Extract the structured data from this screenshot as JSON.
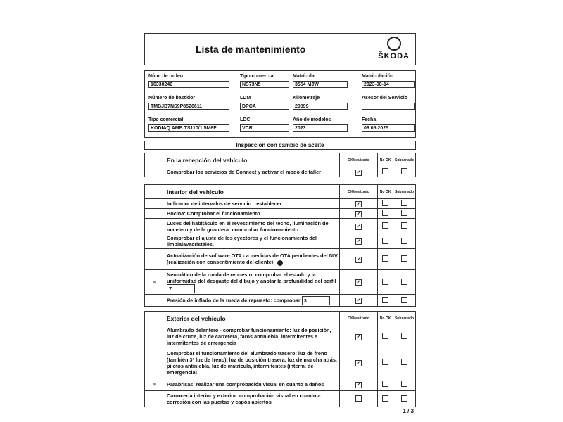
{
  "header": {
    "title": "Lista de mantenimiento",
    "logo": "ŠKODA"
  },
  "info": [
    {
      "label": "Núm. de orden",
      "value": "16330240"
    },
    {
      "label": "Tipo comercial",
      "value": "NS73N5"
    },
    {
      "label": "Matrícula",
      "value": "3554 MJW"
    },
    {
      "label": "Matriculación",
      "value": "2023-08-14"
    },
    {
      "label": "Número de bastidor",
      "value": "TMBJB7NS9P8526611"
    },
    {
      "label": "LDM",
      "value": "DPCA"
    },
    {
      "label": "Kilometraje",
      "value": "29099"
    },
    {
      "label": "Asesor del Servicio",
      "value": ""
    },
    {
      "label": "Tipo comercial",
      "value": "KODIAQ AMB TS110/1.5M6F"
    },
    {
      "label": "LDC",
      "value": "VCR"
    },
    {
      "label": "Año de modelos",
      "value": "2023"
    },
    {
      "label": "Fecha",
      "value": "06.05.2025"
    }
  ],
  "section_title": "Inspección con cambio de aceite",
  "columns": {
    "ok": "OK/realizado",
    "nok": "No OK",
    "sub": "Subsanado"
  },
  "tables": [
    {
      "title": "En la recepción del vehículo",
      "rows": [
        {
          "text": "Comprobar los servicios de Connect y activar el modo de taller",
          "ok": true,
          "nok": false,
          "sub": false
        }
      ]
    },
    {
      "title": "Interior del vehículo",
      "rows": [
        {
          "text": "Indicador de intervalos de servicio: restablecer",
          "ok": true,
          "nok": false,
          "sub": false
        },
        {
          "text": "Bocina: Comprobar el funcionamiento",
          "ok": true,
          "nok": false,
          "sub": false
        },
        {
          "text": "Luces del habitáculo en el revestimiento del techo, iluminación del maletero y de la guantera: comprobar funcionamiento",
          "ok": true,
          "nok": false,
          "sub": false
        },
        {
          "text": "Comprobar el ajuste de los eyectores y el funcionamiento del limpialavacristales.",
          "ok": true,
          "nok": false,
          "sub": false
        },
        {
          "text": "Actualización de software OTA - a medidas de OTA pendientes del NIV (realización con consentimiento del cliente)",
          "ok": true,
          "nok": false,
          "sub": false,
          "dot": true
        },
        {
          "text": "Neumático de la rueda de repuesto: comprobar el estado y la uniformidad del desgaste del dibujo y anotar la profundidad del perfil",
          "input": "7",
          "ok": true,
          "nok": false,
          "sub": false
        },
        {
          "text": "Presión de inflado de la rueda de repuesto: comprobar",
          "input": "3",
          "ok": true,
          "nok": false,
          "sub": false
        }
      ]
    },
    {
      "title": "Exterior del vehículo",
      "rows": [
        {
          "text": "Alumbrado delantero - comprobar funcionamiento: luz de posición, luz de cruce, luz de carretera, faros antiniebla, intermitentes e intermitentes de emergencia",
          "ok": true,
          "nok": false,
          "sub": false
        },
        {
          "text": "Comprobar el funcionamiento del alumbrado trasero: luz de freno (también 3ª luz de freno), luz de posición trasera, luz de marcha atrás, pilotos antiniebla, luz de matrícula, intermitentes (interm. de emergencia)",
          "ok": true,
          "nok": false,
          "sub": false
        },
        {
          "text": "Parabrisas: realizar una comprobación visual en cuanto a daños",
          "ok": true,
          "nok": false,
          "sub": false
        },
        {
          "text": "Carrocería interior y exterior: comprobación visual en cuanto a corrosión con las puertas y capós abiertos",
          "ok": false,
          "nok": false,
          "sub": false
        }
      ]
    }
  ],
  "page": "1 / 3"
}
